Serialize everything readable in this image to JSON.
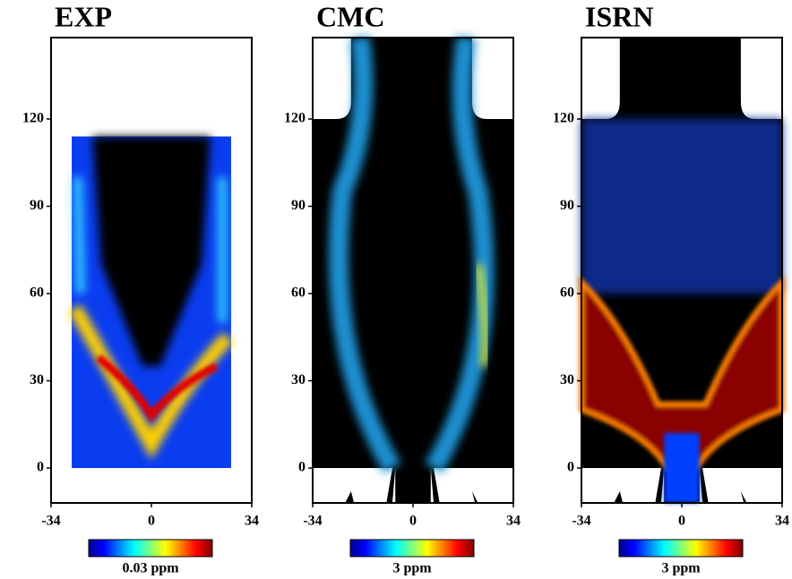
{
  "chart_data": [
    {
      "type": "heatmap",
      "title": "EXP",
      "colorbar_label": "0.03 ppm",
      "colormap": "jet",
      "xlim": [
        -34,
        34
      ],
      "ylim": [
        -12,
        148
      ],
      "xticks": [
        -34,
        0,
        34
      ],
      "yticks": [
        0,
        30,
        60,
        90,
        120
      ]
    },
    {
      "type": "heatmap",
      "title": "CMC",
      "colorbar_label": "3 ppm",
      "colormap": "jet",
      "xlim": [
        -34,
        34
      ],
      "ylim": [
        -12,
        148
      ],
      "xticks": [
        -34,
        0,
        34
      ],
      "yticks": [
        0,
        30,
        60,
        90,
        120
      ]
    },
    {
      "type": "heatmap",
      "title": "ISRN",
      "colorbar_label": "3 ppm",
      "colormap": "jet",
      "xlim": [
        -34,
        34
      ],
      "ylim": [
        -12,
        148
      ],
      "xticks": [
        -34,
        0,
        34
      ],
      "yticks": [
        0,
        30,
        60,
        90,
        120
      ]
    }
  ]
}
